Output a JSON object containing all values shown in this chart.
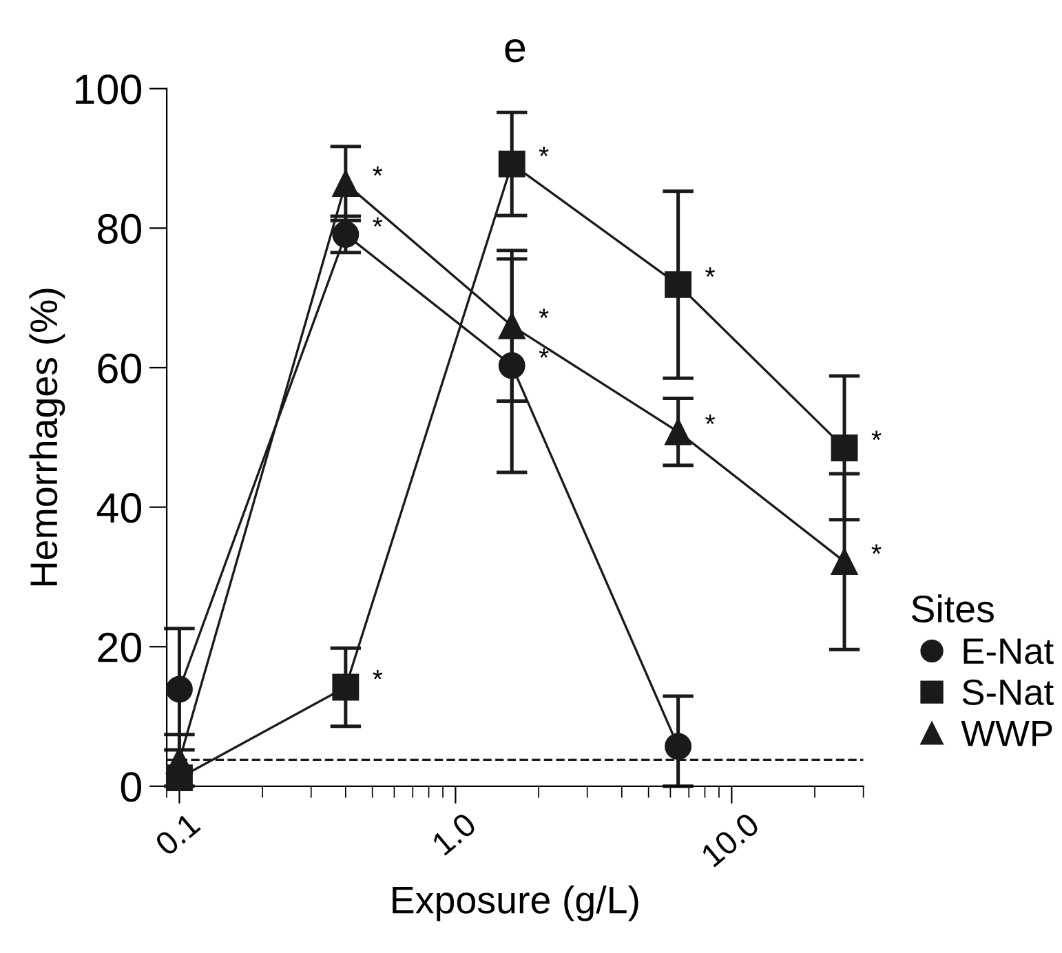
{
  "chart_data": {
    "type": "line",
    "title": "e",
    "xlabel": "Exposure (g/L)",
    "ylabel": "Hemorrhages (%)",
    "legend_title": "Sites",
    "legend": "right",
    "log": "x",
    "grid": false,
    "x": [
      0.1,
      0.4,
      1.6,
      6.4,
      25.6
    ],
    "xlim": [
      0.09,
      30
    ],
    "xticks": [
      {
        "value": 0.1,
        "label": "0.1"
      },
      {
        "value": 1,
        "label": "1.0"
      },
      {
        "value": 10,
        "label": "10.0"
      }
    ],
    "ylim": [
      0,
      100
    ],
    "yticks": [
      0,
      20,
      40,
      60,
      80,
      100
    ],
    "series": [
      {
        "name": "E-Nat",
        "color": "#1a1a1a",
        "marker": "circle",
        "values": [
          13.9,
          79.1,
          60.3,
          5.7,
          null
        ],
        "errors": [
          8.7,
          2.6,
          15.3,
          [
            0,
            12.9
          ],
          null
        ]
      },
      {
        "name": "S-Nat",
        "color": "#1a1a1a",
        "marker": "square",
        "values": [
          1.2,
          14.2,
          89.2,
          71.9,
          48.5
        ],
        "errors": [
          null,
          5.6,
          7.4,
          13.4,
          10.3
        ]
      },
      {
        "name": "WWP",
        "color": "#1a1a1a",
        "marker": "triangle",
        "values": [
          3.7,
          86.4,
          66.0,
          50.8,
          32.2
        ],
        "errors": [
          3.7,
          5.3,
          10.8,
          4.8,
          12.6
        ]
      }
    ],
    "ref_lines": [
      {
        "axis": "y",
        "value": 3.8,
        "line_style": "dashed",
        "color": "#1a1a1a"
      }
    ],
    "annotations": [
      {
        "text": "*",
        "x": 0.4,
        "y": 79.1
      },
      {
        "text": "*",
        "x": 1.6,
        "y": 60.3
      },
      {
        "text": "*",
        "x": 0.4,
        "y": 14.2
      },
      {
        "text": "*",
        "x": 1.6,
        "y": 89.2
      },
      {
        "text": "*",
        "x": 6.4,
        "y": 71.9
      },
      {
        "text": "*",
        "x": 25.6,
        "y": 48.5
      },
      {
        "text": "*",
        "x": 0.4,
        "y": 86.4
      },
      {
        "text": "*",
        "x": 1.6,
        "y": 66.0
      },
      {
        "text": "*",
        "x": 6.4,
        "y": 50.8
      },
      {
        "text": "*",
        "x": 25.6,
        "y": 32.2
      }
    ]
  }
}
